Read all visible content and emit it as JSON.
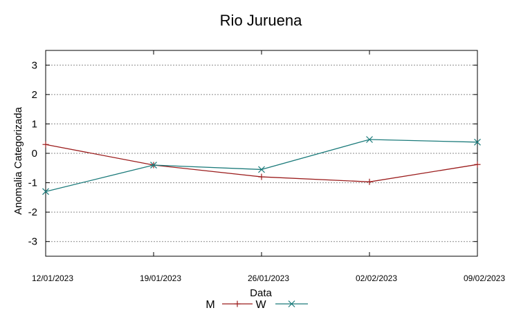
{
  "chart_data": {
    "type": "line",
    "title": "Rio Juruena",
    "xlabel": "Data",
    "ylabel": "Anomalia Categorizada",
    "x": [
      "12/01/2023",
      "19/01/2023",
      "26/01/2023",
      "02/02/2023",
      "09/02/2023"
    ],
    "yticks": [
      "3",
      "2",
      "1",
      "0",
      "-1",
      "-2",
      "-3"
    ],
    "ylim": [
      -3.5,
      3.5
    ],
    "grid": true,
    "legend_position": "bottom",
    "series": [
      {
        "name": "M",
        "values": [
          0.3,
          -0.4,
          -0.8,
          -0.97,
          -0.38
        ],
        "color": "#9b1c1c",
        "marker": "plus"
      },
      {
        "name": "W",
        "values": [
          -1.3,
          -0.4,
          -0.55,
          0.47,
          0.38
        ],
        "color": "#1a7a7a",
        "marker": "cross"
      }
    ]
  }
}
